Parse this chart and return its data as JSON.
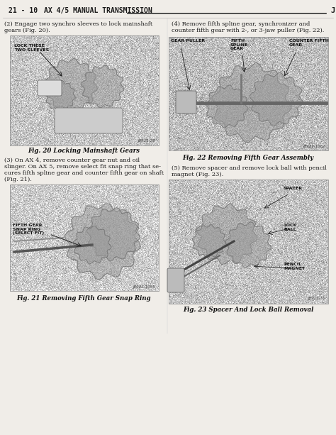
{
  "bg_color": "#f0ede8",
  "body_bg": "#f0ede8",
  "text_color": "#1a1a1a",
  "fig_caption_color": "#111111",
  "header_text": "21 - 10    AX 4/5 MANUAL TRANSMISSION",
  "header_right": "J",
  "para1": "(2) Engage two synchro sleeves to lock mainshaft\ngears (Fig. 20).",
  "para2_a": "(3) On AX 4, remove counter gear nut and oil",
  "para2_b": "slinger. On AX 5, remove select fit snap ring that se-",
  "para2_c": "cures fifth spline gear and counter fifth gear on shaft",
  "para2_d": "(Fig. 21).",
  "para3": "(4) Remove fifth spline gear, synchronizer and\ncounter fifth gear with 2-, or 3-jaw puller (Fig. 22).",
  "para4_a": "(5) Remove spacer and remove lock ball with pencil",
  "para4_b": "magnet (Fig. 23).",
  "fig20_caption": "Fig. 20 Locking Mainshaft Gears",
  "fig21_caption": "Fig. 21 Removing Fifth Gear Snap Ring",
  "fig22_caption": "Fig. 22 Removing Fifth Gear Assembly",
  "fig23_caption": "Fig. 23 Spacer And Lock Ball Removal",
  "stamp20": "J8921-28",
  "stamp21": "J8921-1055",
  "stamp22": "J8921-1062",
  "stamp23": "J8921-31",
  "label_lock": "LOCK THESE\nTWO SLEEVES",
  "label_fifth_gear": "FIFTH GEAR\nSNAP RING\n(SELECT FIT)",
  "label_gear_puller": "GEAR PULLER",
  "label_fifth_spline": "FIFTH\nSPLINE\nGEAR",
  "label_counter_fifth": "COUNTER FIFTH\nGEAR",
  "label_spacer": "SPACER",
  "label_lock_ball": "LOCK\nBALL",
  "label_pencil_magnet": "PENCIL\nMAGNET",
  "img20_gray": 0.72,
  "img21_gray": 0.75,
  "img22_gray": 0.7,
  "img23_gray": 0.73
}
